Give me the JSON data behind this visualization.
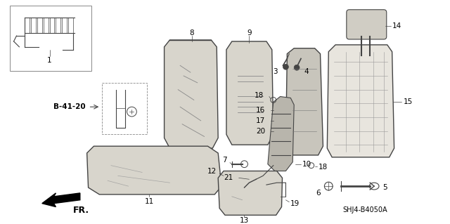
{
  "background_color": "#ffffff",
  "diagram_code": "SHJ4-B4050A",
  "label_b4120": "B-41-20",
  "fr_label": "FR.",
  "line_color": "#444444",
  "fill_seat": "#d8d5cc",
  "fill_frame": "#c8c5bc",
  "fill_light": "#e8e5de"
}
